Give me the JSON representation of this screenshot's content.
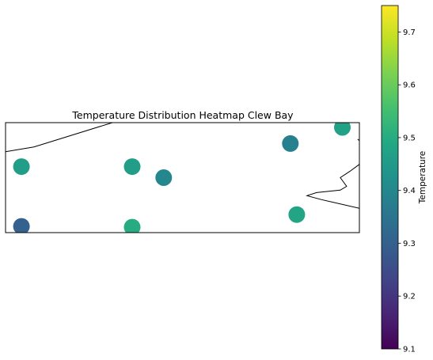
{
  "chart_data": {
    "type": "scatter",
    "title": "Temperature Distribution Heatmap Clew Bay",
    "xlabel": "",
    "ylabel": "",
    "colorbar": {
      "label": "Temperature",
      "range": [
        9.1,
        9.75
      ],
      "ticks": [
        9.1,
        9.2,
        9.3,
        9.4,
        9.5,
        9.6,
        9.7
      ],
      "tick_labels": [
        "9.1",
        "9.2",
        "9.3",
        "9.4",
        "9.5",
        "9.6",
        "9.7"
      ],
      "colormap": "viridis"
    },
    "xlim": [
      0,
      100
    ],
    "ylim": [
      0,
      100
    ],
    "grid": false,
    "axis_ticks": false,
    "points": [
      {
        "x": 4.5,
        "y": 60.0,
        "value": 9.46
      },
      {
        "x": 35.8,
        "y": 60.0,
        "value": 9.46
      },
      {
        "x": 44.7,
        "y": 50.0,
        "value": 9.4
      },
      {
        "x": 80.5,
        "y": 81.0,
        "value": 9.38
      },
      {
        "x": 95.2,
        "y": 95.7,
        "value": 9.47
      },
      {
        "x": 82.3,
        "y": 16.4,
        "value": 9.48
      },
      {
        "x": 35.8,
        "y": 5.0,
        "value": 9.5
      },
      {
        "x": 4.5,
        "y": 5.7,
        "value": 9.3
      }
    ],
    "coastlines": [
      [
        [
          0,
          73.6
        ],
        [
          8,
          77.9
        ],
        [
          30.2,
          100
        ]
      ],
      [
        [
          100,
          62.1
        ],
        [
          97.3,
          55.7
        ],
        [
          94.6,
          50.0
        ],
        [
          96.4,
          42.1
        ],
        [
          94.6,
          38.6
        ],
        [
          87.9,
          36.4
        ],
        [
          85.2,
          33.6
        ],
        [
          89.3,
          30.0
        ],
        [
          100,
          22.1
        ]
      ],
      [
        [
          100,
          83.6
        ],
        [
          99.5,
          85.0
        ]
      ]
    ]
  }
}
